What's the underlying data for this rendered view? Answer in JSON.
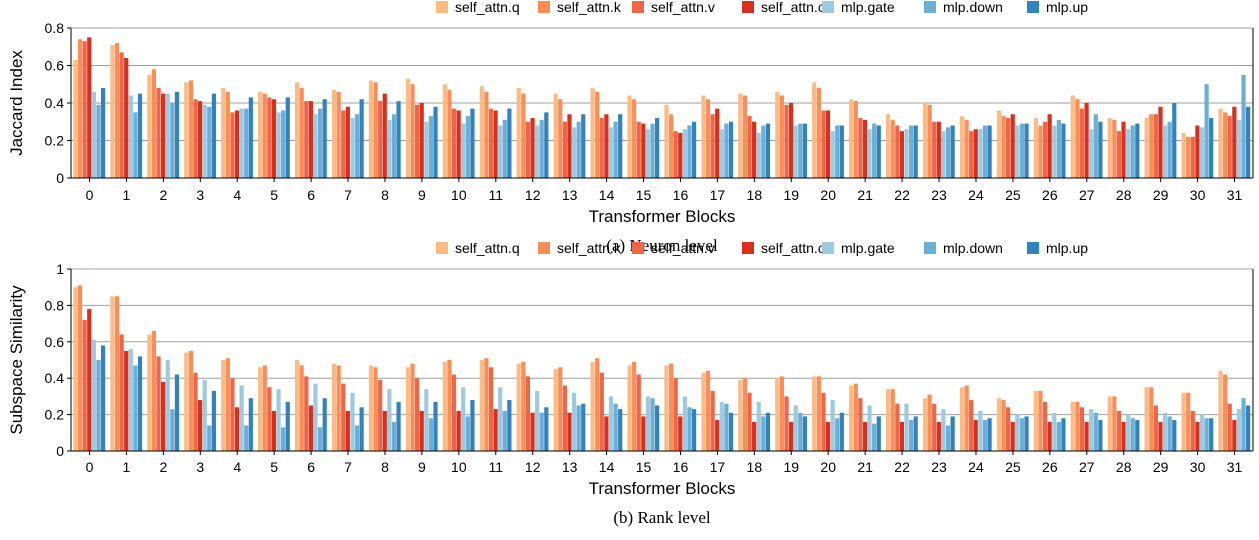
{
  "chart_data": [
    {
      "type": "bar",
      "caption": "(a) Neuron level",
      "xlabel": "Transformer Blocks",
      "ylabel": "Jaccard Index",
      "ylim": [
        0,
        0.8
      ],
      "yticks": [
        "0",
        "0.2",
        "0.4",
        "0.6",
        "0.8"
      ],
      "grid": true,
      "legend_position": "top",
      "categories": [
        "0",
        "1",
        "2",
        "3",
        "4",
        "5",
        "6",
        "7",
        "8",
        "9",
        "10",
        "11",
        "12",
        "13",
        "14",
        "15",
        "16",
        "17",
        "18",
        "19",
        "20",
        "21",
        "22",
        "23",
        "24",
        "25",
        "26",
        "27",
        "28",
        "29",
        "30",
        "31"
      ],
      "series": [
        {
          "name": "self_attn.q",
          "color": "#fdbb84",
          "values": [
            0.63,
            0.71,
            0.55,
            0.51,
            0.48,
            0.46,
            0.51,
            0.47,
            0.52,
            0.53,
            0.5,
            0.49,
            0.48,
            0.45,
            0.48,
            0.44,
            0.39,
            0.44,
            0.45,
            0.46,
            0.51,
            0.42,
            0.34,
            0.4,
            0.33,
            0.36,
            0.32,
            0.44,
            0.32,
            0.32,
            0.24,
            0.37
          ]
        },
        {
          "name": "self_attn.k",
          "color": "#fc8d59",
          "values": [
            0.74,
            0.72,
            0.58,
            0.52,
            0.46,
            0.45,
            0.48,
            0.46,
            0.51,
            0.5,
            0.47,
            0.46,
            0.45,
            0.42,
            0.46,
            0.42,
            0.34,
            0.42,
            0.44,
            0.44,
            0.48,
            0.41,
            0.31,
            0.39,
            0.31,
            0.33,
            0.28,
            0.42,
            0.31,
            0.34,
            0.22,
            0.35
          ]
        },
        {
          "name": "self_attn.v",
          "color": "#ef6548",
          "values": [
            0.73,
            0.67,
            0.48,
            0.42,
            0.35,
            0.43,
            0.41,
            0.36,
            0.41,
            0.39,
            0.37,
            0.37,
            0.3,
            0.3,
            0.32,
            0.3,
            0.25,
            0.34,
            0.33,
            0.39,
            0.36,
            0.32,
            0.28,
            0.3,
            0.25,
            0.32,
            0.3,
            0.37,
            0.25,
            0.34,
            0.22,
            0.33
          ]
        },
        {
          "name": "self_attn.o",
          "color": "#d7301f",
          "values": [
            0.75,
            0.64,
            0.45,
            0.41,
            0.36,
            0.42,
            0.41,
            0.38,
            0.45,
            0.4,
            0.36,
            0.36,
            0.32,
            0.34,
            0.34,
            0.29,
            0.24,
            0.37,
            0.3,
            0.4,
            0.36,
            0.31,
            0.25,
            0.3,
            0.26,
            0.34,
            0.34,
            0.4,
            0.3,
            0.38,
            0.28,
            0.38
          ]
        },
        {
          "name": "mlp.gate",
          "color": "#9ecae1",
          "values": [
            0.46,
            0.44,
            0.45,
            0.39,
            0.37,
            0.35,
            0.34,
            0.32,
            0.31,
            0.3,
            0.29,
            0.28,
            0.28,
            0.27,
            0.27,
            0.26,
            0.26,
            0.26,
            0.24,
            0.28,
            0.25,
            0.26,
            0.26,
            0.25,
            0.26,
            0.28,
            0.28,
            0.26,
            0.26,
            0.28,
            0.27,
            0.31
          ]
        },
        {
          "name": "mlp.down",
          "color": "#6baed6",
          "values": [
            0.39,
            0.35,
            0.4,
            0.38,
            0.37,
            0.36,
            0.37,
            0.34,
            0.34,
            0.33,
            0.33,
            0.31,
            0.31,
            0.3,
            0.3,
            0.29,
            0.28,
            0.29,
            0.28,
            0.29,
            0.28,
            0.29,
            0.28,
            0.27,
            0.28,
            0.29,
            0.31,
            0.34,
            0.28,
            0.3,
            0.5,
            0.55
          ]
        },
        {
          "name": "mlp.up",
          "color": "#3182bd",
          "values": [
            0.48,
            0.45,
            0.46,
            0.45,
            0.43,
            0.43,
            0.42,
            0.42,
            0.41,
            0.38,
            0.37,
            0.37,
            0.35,
            0.34,
            0.34,
            0.32,
            0.3,
            0.3,
            0.29,
            0.29,
            0.28,
            0.28,
            0.28,
            0.28,
            0.28,
            0.29,
            0.29,
            0.3,
            0.29,
            0.4,
            0.32,
            0.38
          ]
        }
      ]
    },
    {
      "type": "bar",
      "caption": "(b) Rank level",
      "xlabel": "Transformer Blocks",
      "ylabel": "Subspace Similarity",
      "ylim": [
        0,
        1
      ],
      "yticks": [
        "0",
        "0.2",
        "0.4",
        "0.6",
        "0.8",
        "1"
      ],
      "grid": true,
      "legend_position": "top",
      "categories": [
        "0",
        "1",
        "2",
        "3",
        "4",
        "5",
        "6",
        "7",
        "8",
        "9",
        "10",
        "11",
        "12",
        "13",
        "14",
        "15",
        "16",
        "17",
        "18",
        "19",
        "20",
        "21",
        "22",
        "23",
        "24",
        "25",
        "26",
        "27",
        "28",
        "29",
        "30",
        "31"
      ],
      "series": [
        {
          "name": "self_attn.q",
          "color": "#fdbb84",
          "values": [
            0.9,
            0.85,
            0.64,
            0.54,
            0.5,
            0.46,
            0.5,
            0.48,
            0.47,
            0.46,
            0.49,
            0.5,
            0.48,
            0.45,
            0.49,
            0.47,
            0.47,
            0.43,
            0.39,
            0.4,
            0.41,
            0.36,
            0.34,
            0.29,
            0.35,
            0.29,
            0.33,
            0.27,
            0.3,
            0.35,
            0.32,
            0.44
          ]
        },
        {
          "name": "self_attn.k",
          "color": "#fc8d59",
          "values": [
            0.91,
            0.85,
            0.66,
            0.55,
            0.51,
            0.47,
            0.47,
            0.47,
            0.46,
            0.48,
            0.5,
            0.51,
            0.49,
            0.46,
            0.51,
            0.49,
            0.48,
            0.44,
            0.4,
            0.41,
            0.41,
            0.37,
            0.34,
            0.31,
            0.36,
            0.28,
            0.33,
            0.27,
            0.3,
            0.35,
            0.32,
            0.42
          ]
        },
        {
          "name": "self_attn.v",
          "color": "#ef6548",
          "values": [
            0.72,
            0.64,
            0.52,
            0.43,
            0.4,
            0.35,
            0.41,
            0.37,
            0.39,
            0.4,
            0.42,
            0.46,
            0.41,
            0.36,
            0.43,
            0.42,
            0.4,
            0.33,
            0.32,
            0.3,
            0.32,
            0.29,
            0.26,
            0.26,
            0.28,
            0.24,
            0.27,
            0.24,
            0.22,
            0.25,
            0.22,
            0.26
          ]
        },
        {
          "name": "self_attn.o",
          "color": "#d7301f",
          "values": [
            0.78,
            0.55,
            0.38,
            0.28,
            0.24,
            0.22,
            0.25,
            0.22,
            0.22,
            0.22,
            0.22,
            0.23,
            0.21,
            0.21,
            0.19,
            0.19,
            0.19,
            0.17,
            0.16,
            0.16,
            0.16,
            0.16,
            0.16,
            0.16,
            0.17,
            0.16,
            0.16,
            0.16,
            0.16,
            0.16,
            0.16,
            0.17
          ]
        },
        {
          "name": "mlp.gate",
          "color": "#9ecae1",
          "values": [
            0.61,
            0.56,
            0.5,
            0.39,
            0.36,
            0.34,
            0.37,
            0.32,
            0.34,
            0.34,
            0.35,
            0.35,
            0.33,
            0.32,
            0.3,
            0.3,
            0.3,
            0.27,
            0.27,
            0.25,
            0.28,
            0.25,
            0.26,
            0.23,
            0.22,
            0.2,
            0.21,
            0.23,
            0.2,
            0.21,
            0.2,
            0.23
          ]
        },
        {
          "name": "mlp.down",
          "color": "#6baed6",
          "values": [
            0.5,
            0.47,
            0.23,
            0.14,
            0.14,
            0.13,
            0.13,
            0.14,
            0.16,
            0.18,
            0.19,
            0.22,
            0.21,
            0.25,
            0.26,
            0.29,
            0.24,
            0.26,
            0.19,
            0.21,
            0.18,
            0.15,
            0.17,
            0.14,
            0.17,
            0.18,
            0.16,
            0.21,
            0.18,
            0.19,
            0.18,
            0.29
          ]
        },
        {
          "name": "mlp.up",
          "color": "#3182bd",
          "values": [
            0.58,
            0.52,
            0.42,
            0.33,
            0.29,
            0.27,
            0.29,
            0.24,
            0.27,
            0.27,
            0.28,
            0.28,
            0.24,
            0.26,
            0.23,
            0.25,
            0.23,
            0.21,
            0.21,
            0.19,
            0.21,
            0.19,
            0.19,
            0.19,
            0.18,
            0.19,
            0.18,
            0.17,
            0.17,
            0.17,
            0.18,
            0.25
          ]
        }
      ]
    }
  ]
}
